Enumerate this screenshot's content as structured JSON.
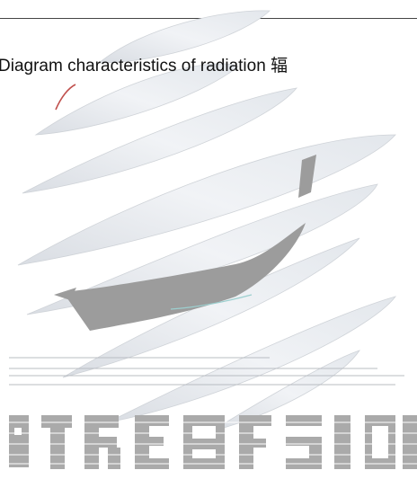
{
  "caption": {
    "text": "Diagram characteristics of radiation 辐"
  },
  "logo": {
    "icon": "striped-emblem-logo",
    "wordmark_color": "#aaaaaa",
    "stripe_fill": "#eef0f4",
    "accent_gray": "#9c9c9c",
    "accent_red": "#c0504d"
  }
}
